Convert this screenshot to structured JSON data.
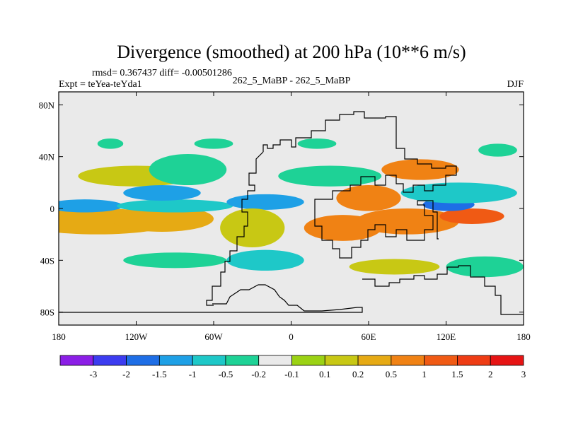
{
  "chart_data": {
    "type": "heatmap",
    "title": "Divergence (smoothed) at 200 hPa (10**6 m/s)",
    "stats": "rmsd= 0.367437  diff= -0.00501286",
    "experiment": "Expt = teYea-teYda1",
    "case": "262_5_MaBP - 262_5_MaBP",
    "season": "DJF",
    "x_ticks": [
      "180",
      "120W",
      "60W",
      "0",
      "60E",
      "120E",
      "180"
    ],
    "x_values": [
      -180,
      -120,
      -60,
      0,
      60,
      120,
      180
    ],
    "y_ticks": [
      "80N",
      "40N",
      "0",
      "40S",
      "80S"
    ],
    "y_values": [
      80,
      40,
      0,
      -40,
      -80
    ],
    "xlim": [
      -180,
      180
    ],
    "ylim": [
      -90,
      90
    ],
    "colorbar": {
      "labels": [
        "-3",
        "-2",
        "-1.5",
        "-1",
        "-0.5",
        "-0.2",
        "-0.1",
        "0.1",
        "0.2",
        "0.5",
        "1",
        "1.5",
        "2",
        "3"
      ],
      "colors": [
        "#8b1ee6",
        "#3c3cf0",
        "#1e6ee6",
        "#1ea0e6",
        "#1ec8c8",
        "#1ed296",
        "#eaeaea",
        "#9bd214",
        "#c8c814",
        "#e6aa14",
        "#f08214",
        "#f05a14",
        "#ee3c14",
        "#e61414"
      ]
    },
    "blobs": [
      {
        "lon": -150,
        "lat": -10,
        "rx": 30,
        "ry": 6,
        "c": 12
      },
      {
        "lon": -150,
        "lat": -10,
        "rx": 60,
        "ry": 10,
        "c": 9
      },
      {
        "lon": -100,
        "lat": -8,
        "rx": 40,
        "ry": 10,
        "c": 9
      },
      {
        "lon": -160,
        "lat": 2,
        "rx": 30,
        "ry": 5,
        "c": 3
      },
      {
        "lon": -90,
        "lat": 2,
        "rx": 45,
        "ry": 5,
        "c": 4
      },
      {
        "lon": -120,
        "lat": 25,
        "rx": 45,
        "ry": 8,
        "c": 8
      },
      {
        "lon": -80,
        "lat": 30,
        "rx": 30,
        "ry": 12,
        "c": 5
      },
      {
        "lon": -100,
        "lat": 12,
        "rx": 30,
        "ry": 6,
        "c": 3
      },
      {
        "lon": 60,
        "lat": 8,
        "rx": 25,
        "ry": 10,
        "c": 10
      },
      {
        "lon": 90,
        "lat": -10,
        "rx": 40,
        "ry": 10,
        "c": 10
      },
      {
        "lon": 140,
        "lat": -6,
        "rx": 25,
        "ry": 6,
        "c": 11
      },
      {
        "lon": 122,
        "lat": 3,
        "rx": 20,
        "ry": 5,
        "c": 2
      },
      {
        "lon": 130,
        "lat": 12,
        "rx": 45,
        "ry": 8,
        "c": 4
      },
      {
        "lon": 100,
        "lat": 30,
        "rx": 30,
        "ry": 8,
        "c": 10
      },
      {
        "lon": 30,
        "lat": 25,
        "rx": 40,
        "ry": 8,
        "c": 5
      },
      {
        "lon": -20,
        "lat": 5,
        "rx": 30,
        "ry": 6,
        "c": 3
      },
      {
        "lon": -30,
        "lat": -15,
        "rx": 25,
        "ry": 15,
        "c": 8
      },
      {
        "lon": 40,
        "lat": -15,
        "rx": 30,
        "ry": 10,
        "c": 10
      },
      {
        "lon": -20,
        "lat": -40,
        "rx": 30,
        "ry": 8,
        "c": 4
      },
      {
        "lon": 80,
        "lat": -45,
        "rx": 35,
        "ry": 6,
        "c": 8
      },
      {
        "lon": 150,
        "lat": -45,
        "rx": 30,
        "ry": 8,
        "c": 5
      },
      {
        "lon": -90,
        "lat": -40,
        "rx": 40,
        "ry": 6,
        "c": 5
      },
      {
        "lon": -140,
        "lat": 50,
        "rx": 10,
        "ry": 4,
        "c": 5
      },
      {
        "lon": -60,
        "lat": 50,
        "rx": 15,
        "ry": 4,
        "c": 5
      },
      {
        "lon": 20,
        "lat": 50,
        "rx": 15,
        "ry": 4,
        "c": 5
      },
      {
        "lon": 160,
        "lat": 45,
        "rx": 15,
        "ry": 5,
        "c": 5
      }
    ]
  }
}
